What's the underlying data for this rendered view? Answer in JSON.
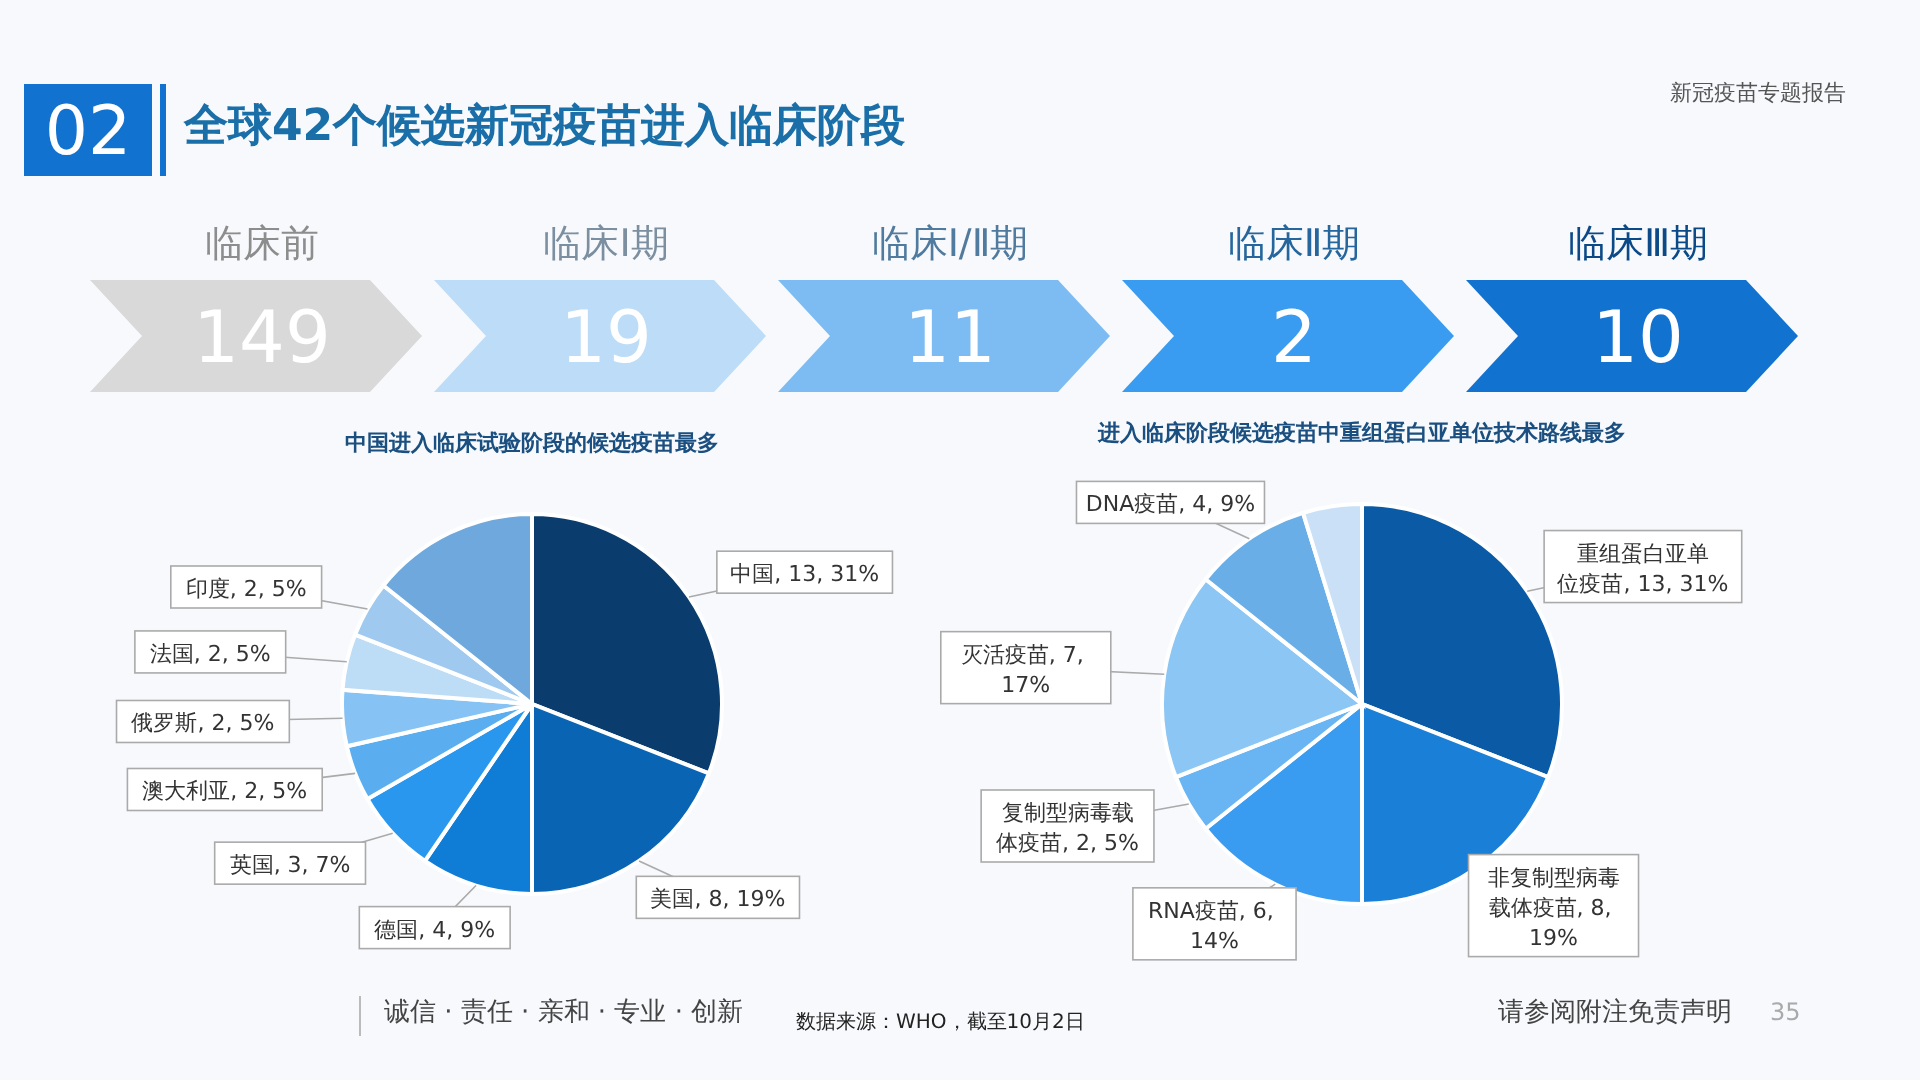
{
  "chart_data": [
    {
      "type": "other",
      "title": "全球42个候选新冠疫苗进入临床阶段",
      "categories": [
        "临床前",
        "临床Ⅰ期",
        "临床Ⅰ/Ⅱ期",
        "临床Ⅱ期",
        "临床Ⅲ期"
      ],
      "values": [
        149,
        19,
        11,
        2,
        10
      ],
      "colors": [
        "#d9d9d9",
        "#bcdcf7",
        "#7dbcf2",
        "#3a9cf0",
        "#1272cf"
      ],
      "data_labels": true,
      "annotations": [
        "02",
        "新冠疫苗专题报告",
        "诚信 · 责任 · 亲和 · 专业 · 创新",
        "数据来源：WHO，截至10月2日",
        "请参阅附注免责声明",
        "35"
      ]
    },
    {
      "type": "pie",
      "title": "中国进入临床试验阶段的候选疫苗最多",
      "categories": [
        "中国",
        "美国",
        "德国",
        "英国",
        "澳大利亚",
        "俄罗斯",
        "法国",
        "印度",
        null
      ],
      "values": [
        13,
        8,
        4,
        3,
        2,
        2,
        2,
        2,
        6
      ],
      "colors": [
        "#0a3d6e",
        "#0a64b4",
        "#0f7dd6",
        "#2a97ef",
        "#5aaef0",
        "#86c3f4",
        "#bddcf6",
        "#9fc9ee",
        "#6fa8dc"
      ],
      "value_labels": [
        "13, 31%",
        "8, 19%",
        "4, 9%",
        "3, 7%",
        "2, 5%",
        "2, 5%",
        "2, 5%",
        "2, 5%",
        null
      ]
    },
    {
      "type": "pie",
      "title": "进入临床阶段候选疫苗中重组蛋白亚单位技术路线最多",
      "categories": [
        "重组蛋白亚单位疫苗",
        "非复制型病毒载体疫苗",
        "RNA疫苗",
        "复制型病毒载体疫苗",
        "灭活疫苗",
        "DNA疫苗",
        null
      ],
      "values": [
        13,
        8,
        6,
        2,
        7,
        4,
        2
      ],
      "colors": [
        "#0b5aa5",
        "#1a7fd6",
        "#3a9cf0",
        "#69b4f2",
        "#8cc6f4",
        "#6aaee8",
        "#c9e0f6"
      ],
      "value_labels": [
        "13, 31%",
        "8, 19%",
        "6, 14%",
        "2, 5%",
        "7, 17%",
        "4, 9%",
        null
      ]
    }
  ]
}
